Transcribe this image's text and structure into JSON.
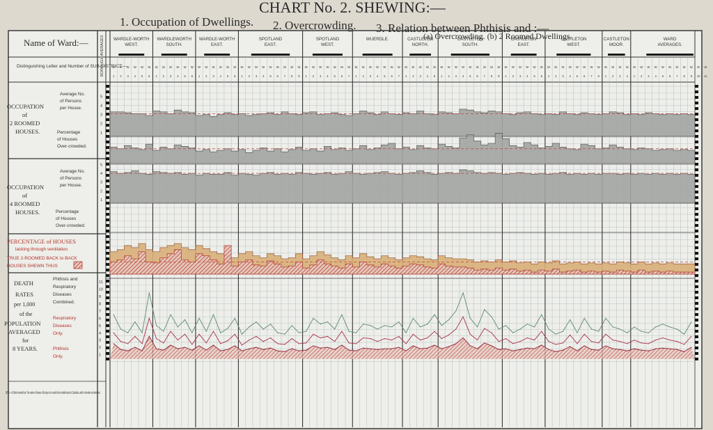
{
  "header": {
    "title": "CHART No. 2. SHEWING:—",
    "subtitle_1": "1. Occupation of Dwellings.",
    "subtitle_2": "2. Overcrowding.",
    "subtitle_3": "3. Relation between Phthisis and :—",
    "subtitle_3b": "(a) Overcrowding.  (b) 2 Roomed Dwellings."
  },
  "left_labels": {
    "name_of_ward": "Name of Ward:—",
    "subdistrict": "Distinguishing Letter and Number of SUB-DISTRICT:—",
    "occ2_title_1": "OCCUPATION",
    "occ2_title_2": "of",
    "occ2_title_3": "2 ROOMED",
    "occ2_title_4": "HOUSES.",
    "avg_no_1": "Average No.",
    "avg_no_2": "of Persons",
    "avg_no_3": "per House.",
    "pct_1": "Percentage",
    "pct_2": "of Houses",
    "pct_3": "Over-crowded.",
    "occ4_title_1": "OCCUPATION",
    "occ4_title_2": "of",
    "occ4_title_3": "4 ROOMED",
    "occ4_title_4": "HOUSES.",
    "vent_1": "PERCENTAGE of HOUSES",
    "vent_2": "lacking through ventilation",
    "vent_3": "TRUE 2-ROOMED BACK to BACK",
    "vent_4": "HOUSES SHEWN THUS",
    "death_1": "DEATH",
    "death_2": "RATES",
    "death_3": "per 1,000",
    "death_4": "of the",
    "death_5": "POPULATION",
    "death_6": "AVERAGED",
    "death_7": "for",
    "death_8": "8 YEARS.",
    "leg_a1": "Phthisis and",
    "leg_a2": "Respiratory",
    "leg_a3": "Diseases",
    "leg_a4": "Combined.",
    "leg_b1": "Respiratory",
    "leg_b2": "Diseases",
    "leg_b3": "Only.",
    "leg_c1": "Phthisis",
    "leg_c2": "Only.",
    "note": "NOTE.—In Districts marked thus * the number of Houses of that type is too small to form reliable basis for Calculation, which is therefore not attempted.",
    "borough_averages": "BOROUGH AVERAGES"
  },
  "chart_data": {
    "type": "line",
    "title": "CHART No. 2. SHEWING:—",
    "wards": [
      {
        "name": "WARDLE-WORTH WEST.",
        "n": 6
      },
      {
        "name": "WARDLEWORTH SOUTH.",
        "n": 6
      },
      {
        "name": "WARDLE-WORTH EAST.",
        "n": 6
      },
      {
        "name": "SPOTLAND EAST.",
        "n": 9
      },
      {
        "name": "SPOTLAND WEST.",
        "n": 7
      },
      {
        "name": "WUERDLE.",
        "n": 7
      },
      {
        "name": "CASTLETON NORTH.",
        "n": 5
      },
      {
        "name": "CASTLETON SOUTH.",
        "n": 9
      },
      {
        "name": "CASTLETON EAST.",
        "n": 6
      },
      {
        "name": "CASTLETON WEST.",
        "n": 8
      },
      {
        "name": "CASTLETON MOOR.",
        "n": 4
      },
      {
        "name": "WARD AVERAGES.",
        "n": 11
      }
    ],
    "avg_persons_2_rooms": [
      3.3,
      3.3,
      3.2,
      3.1,
      3.1,
      2.9,
      3.4,
      3.3,
      3.1,
      3.5,
      3.3,
      3.2,
      2.9,
      3.0,
      2.8,
      3.0,
      3.2,
      3.0,
      3.1,
      2.9,
      3.0,
      3.1,
      3.2,
      3.0,
      3.3,
      3.1,
      3.0,
      3.2,
      3.3,
      3.0,
      3.1,
      3.2,
      3.0,
      2.9,
      3.1,
      3.4,
      3.2,
      3.0,
      3.3,
      3.1,
      3.0,
      3.2,
      3.1,
      3.4,
      3.1,
      3.0,
      3.3,
      3.2,
      3.1,
      3.6,
      3.5,
      3.3,
      3.2,
      3.4,
      3.3,
      3.1,
      3.0,
      3.2,
      3.3,
      3.1,
      3.0,
      3.1,
      3.0,
      3.3,
      3.1,
      3.0,
      3.2,
      3.1,
      3.0,
      3.1,
      3.3,
      3.2,
      3.0,
      3.1,
      3.0,
      3.2,
      3.1,
      3.0,
      3.1,
      3.0,
      3.1,
      3.0
    ],
    "pct_overcrowded_2_rooms": [
      22,
      20,
      24,
      21,
      19,
      26,
      18,
      22,
      20,
      25,
      23,
      21,
      17,
      19,
      16,
      18,
      20,
      17,
      19,
      15,
      18,
      21,
      17,
      20,
      16,
      19,
      22,
      18,
      20,
      17,
      23,
      19,
      21,
      18,
      20,
      24,
      19,
      21,
      25,
      27,
      20,
      22,
      19,
      24,
      21,
      20,
      26,
      23,
      21,
      34,
      38,
      30,
      25,
      27,
      40,
      33,
      24,
      22,
      28,
      25,
      21,
      23,
      27,
      22,
      20,
      19,
      26,
      24,
      20,
      21,
      25,
      22,
      20,
      19,
      21,
      20,
      18,
      19,
      20,
      18,
      19,
      18
    ],
    "avg_persons_4_rooms": [
      4.2,
      4.0,
      4.1,
      4.3,
      4.0,
      3.9,
      4.2,
      4.1,
      4.0,
      4.1,
      3.9,
      4.0,
      3.8,
      4.0,
      3.9,
      3.9,
      4.1,
      3.8,
      4.0,
      3.9,
      3.8,
      4.0,
      4.1,
      3.9,
      4.0,
      3.9,
      4.1,
      4.0,
      3.9,
      4.0,
      4.1,
      3.9,
      4.0,
      4.2,
      4.0,
      3.9,
      4.0,
      4.1,
      4.2,
      4.0,
      3.9,
      4.0,
      4.1,
      4.3,
      4.1,
      3.9,
      4.0,
      4.1,
      4.0,
      4.4,
      4.3,
      4.1,
      4.0,
      4.1,
      4.0,
      3.9,
      4.0,
      4.1,
      4.0,
      3.9,
      4.0,
      3.9,
      4.0,
      4.1,
      3.9,
      4.0,
      3.9,
      4.0,
      3.9,
      4.0,
      4.0,
      3.9,
      4.0,
      3.9,
      4.0,
      3.9,
      4.0,
      3.9,
      4.0,
      3.9,
      4.0,
      3.9
    ],
    "pct_houses_lacking_ventilation": [
      22,
      24,
      28,
      26,
      30,
      24,
      22,
      26,
      28,
      30,
      26,
      24,
      28,
      25,
      22,
      20,
      18,
      16,
      20,
      22,
      18,
      16,
      20,
      18,
      15,
      16,
      20,
      15,
      18,
      22,
      19,
      16,
      14,
      18,
      16,
      20,
      17,
      15,
      18,
      16,
      14,
      16,
      18,
      17,
      15,
      14,
      18,
      16,
      15,
      15,
      14,
      12,
      13,
      12,
      14,
      12,
      13,
      11,
      12,
      10,
      12,
      11,
      13,
      10,
      11,
      12,
      10,
      11,
      10,
      11,
      10,
      12,
      11,
      10,
      12,
      10,
      11,
      10,
      11,
      10,
      10,
      10
    ],
    "back_to_back_pct": [
      12,
      14,
      18,
      15,
      22,
      12,
      11,
      16,
      20,
      24,
      14,
      12,
      20,
      18,
      14,
      10,
      28,
      8,
      12,
      14,
      9,
      8,
      13,
      10,
      7,
      8,
      12,
      6,
      9,
      14,
      10,
      8,
      6,
      10,
      7,
      12,
      9,
      7,
      10,
      8,
      6,
      8,
      10,
      9,
      7,
      6,
      10,
      8,
      7,
      7,
      6,
      4,
      5,
      4,
      6,
      4,
      5,
      3,
      4,
      2,
      4,
      3,
      5,
      2,
      3,
      4,
      2,
      3,
      2,
      3,
      2,
      4,
      3,
      2,
      4,
      2,
      3,
      2,
      3,
      2,
      2,
      2
    ],
    "phthisis_and_respiratory_combined": [
      6.5,
      4.5,
      4.0,
      5.5,
      4.0,
      9.5,
      5.0,
      4.2,
      6.5,
      4.8,
      5.8,
      4.0,
      6.0,
      4.2,
      6.5,
      4.0,
      4.6,
      6.0,
      3.8,
      4.8,
      5.5,
      4.5,
      5.2,
      4.0,
      3.8,
      5.0,
      4.0,
      4.2,
      6.0,
      5.2,
      5.5,
      4.5,
      6.5,
      4.2,
      4.0,
      5.2,
      5.0,
      4.5,
      5.0,
      4.8,
      5.5,
      4.0,
      6.0,
      4.8,
      5.2,
      6.5,
      5.0,
      5.8,
      7.0,
      9.5,
      6.0,
      4.8,
      7.2,
      6.2,
      4.5,
      5.0,
      4.0,
      4.5,
      5.2,
      4.8,
      6.5,
      4.5,
      3.8,
      4.2,
      5.8,
      4.0,
      6.0,
      4.5,
      4.2,
      6.0,
      4.8,
      4.5,
      4.0,
      4.8,
      4.2,
      4.0,
      4.8,
      5.2,
      4.8,
      4.5,
      3.8,
      5.5
    ],
    "respiratory_only": [
      4.0,
      2.8,
      2.5,
      3.5,
      2.5,
      6.0,
      3.2,
      2.6,
      4.2,
      3.0,
      3.8,
      2.4,
      3.8,
      2.6,
      4.2,
      2.5,
      2.9,
      3.8,
      2.3,
      3.0,
      3.5,
      2.8,
      3.3,
      2.5,
      2.4,
      3.2,
      2.5,
      2.6,
      3.8,
      3.3,
      3.5,
      2.8,
      4.2,
      2.6,
      2.5,
      3.3,
      3.2,
      2.8,
      3.2,
      3.0,
      3.5,
      2.5,
      3.8,
      3.0,
      3.3,
      4.2,
      3.2,
      3.7,
      4.5,
      6.2,
      3.8,
      3.0,
      4.6,
      4.0,
      2.8,
      3.2,
      2.5,
      2.8,
      3.3,
      3.0,
      4.2,
      2.8,
      2.4,
      2.6,
      3.7,
      2.5,
      3.8,
      2.8,
      2.6,
      3.8,
      3.0,
      2.8,
      2.5,
      3.0,
      2.6,
      2.5,
      3.0,
      3.3,
      3.0,
      2.8,
      2.4,
      3.5
    ],
    "phthisis_only": [
      2.5,
      1.7,
      1.5,
      2.0,
      1.5,
      3.5,
      1.8,
      1.6,
      2.3,
      1.8,
      2.0,
      1.6,
      2.2,
      1.6,
      2.3,
      1.5,
      1.7,
      2.2,
      1.5,
      1.8,
      2.0,
      1.7,
      1.9,
      1.5,
      1.4,
      1.8,
      1.5,
      1.6,
      2.2,
      1.9,
      2.0,
      1.7,
      2.3,
      1.6,
      1.5,
      1.9,
      1.8,
      1.7,
      1.8,
      1.8,
      2.0,
      1.5,
      2.2,
      1.8,
      1.9,
      2.3,
      1.8,
      2.1,
      2.5,
      3.3,
      2.2,
      1.8,
      2.6,
      2.2,
      1.7,
      1.8,
      1.5,
      1.7,
      1.9,
      1.8,
      2.3,
      1.7,
      1.4,
      1.6,
      2.1,
      1.5,
      2.2,
      1.7,
      1.6,
      2.2,
      1.8,
      1.7,
      1.5,
      1.8,
      1.6,
      1.5,
      1.8,
      1.9,
      1.8,
      1.7,
      1.4,
      2.0
    ],
    "avg_persons_ticks": [
      "1",
      "2",
      "3",
      "4",
      "5"
    ],
    "death_rate_ticks": [
      "1",
      "2",
      "3",
      "4",
      "5",
      "6",
      "7",
      "8",
      "9",
      "10",
      "11"
    ],
    "avg_persons_2_borough": 3.1,
    "pct_overcrowded_2_borough": 20,
    "avg_persons_4_borough": 4.0,
    "ventilation_borough": 12
  },
  "colors": {
    "paper": "#ddd9cf",
    "bar_fill": "#a3a5a2",
    "ventilation_fill": "#d9b07a",
    "back_to_back": "#c65a40",
    "grid": "#8fa8a8",
    "dashed_red": "#c04538",
    "combined_line": "#5f8a73",
    "respiratory_line": "#a8334a",
    "phthisis_line": "#9a3040"
  }
}
